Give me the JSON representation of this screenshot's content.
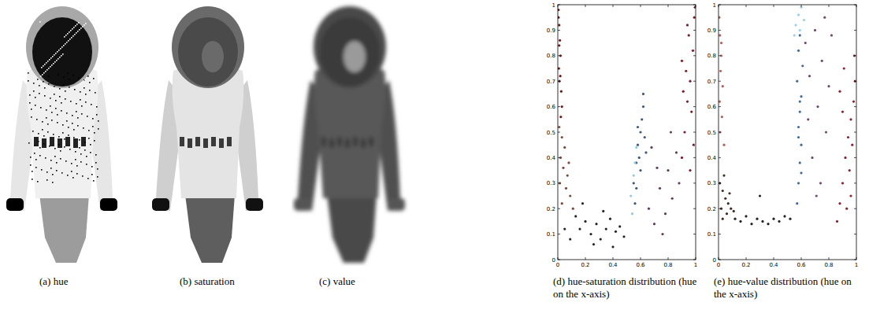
{
  "image_panels": [
    {
      "caption": "(a) hue"
    },
    {
      "caption": "(b) saturation"
    },
    {
      "caption": "(c) value"
    }
  ],
  "chart_data": [
    {
      "type": "scatter",
      "caption": "(d) hue-saturation distribution (hue on the x-axis)",
      "marker": "dot",
      "xlim": [
        0,
        1
      ],
      "ylim": [
        0,
        1
      ],
      "xticks": [
        0,
        0.2,
        0.4,
        0.6,
        0.8,
        1
      ],
      "yticks": [
        0,
        0.1,
        0.2,
        0.3,
        0.4,
        0.5,
        0.6,
        0.7,
        0.8,
        0.9,
        1
      ],
      "series": [
        {
          "color": "#6e1a1c",
          "x": [
            0.005,
            0.01,
            0.015,
            0.02,
            0.008,
            0.012,
            0.025,
            0.03,
            0.005,
            0.018,
            0.01,
            0.022
          ],
          "values": [
            0.98,
            0.92,
            0.86,
            0.8,
            0.75,
            0.7,
            0.66,
            0.6,
            0.95,
            0.72,
            0.84,
            0.56
          ]
        },
        {
          "color": "#7a4a3e",
          "x": [
            0.01,
            0.03,
            0.05,
            0.02,
            0.04,
            0.07,
            0.015,
            0.06,
            0.09,
            0.03,
            0.11,
            0.08
          ],
          "values": [
            0.52,
            0.48,
            0.44,
            0.4,
            0.36,
            0.33,
            0.3,
            0.28,
            0.25,
            0.22,
            0.2,
            0.38
          ]
        },
        {
          "color": "#2a2424",
          "x": [
            0.13,
            0.16,
            0.2,
            0.24,
            0.28,
            0.31,
            0.35,
            0.38,
            0.42,
            0.45,
            0.48,
            0.18,
            0.26,
            0.33,
            0.4,
            0.05,
            0.09
          ],
          "values": [
            0.17,
            0.12,
            0.15,
            0.1,
            0.14,
            0.08,
            0.12,
            0.16,
            0.11,
            0.13,
            0.09,
            0.22,
            0.06,
            0.19,
            0.05,
            0.12,
            0.08
          ]
        },
        {
          "color": "#3d5878",
          "x": [
            0.55,
            0.57,
            0.58,
            0.6,
            0.61,
            0.62,
            0.59,
            0.63,
            0.6,
            0.57,
            0.64,
            0.56,
            0.62,
            0.58
          ],
          "values": [
            0.3,
            0.38,
            0.45,
            0.5,
            0.55,
            0.6,
            0.4,
            0.48,
            0.35,
            0.28,
            0.42,
            0.22,
            0.65,
            0.52
          ]
        },
        {
          "color": "#8fc8e0",
          "x": [
            0.53,
            0.55,
            0.56,
            0.54,
            0.57
          ],
          "values": [
            0.25,
            0.33,
            0.38,
            0.18,
            0.44
          ]
        },
        {
          "color": "#5e3e5a",
          "x": [
            0.66,
            0.7,
            0.74,
            0.78,
            0.8,
            0.83,
            0.86,
            0.72,
            0.76,
            0.68,
            0.82,
            0.88
          ],
          "values": [
            0.2,
            0.14,
            0.28,
            0.18,
            0.35,
            0.24,
            0.42,
            0.36,
            0.1,
            0.44,
            0.5,
            0.3
          ]
        },
        {
          "color": "#7c1c2a",
          "x": [
            0.9,
            0.92,
            0.94,
            0.96,
            0.98,
            0.99,
            0.95,
            0.93,
            0.97,
            0.91,
            0.995,
            0.985,
            0.96,
            0.94,
            0.9
          ],
          "values": [
            0.4,
            0.5,
            0.62,
            0.7,
            0.82,
            0.95,
            0.88,
            0.74,
            0.58,
            0.66,
            0.99,
            0.45,
            0.35,
            0.92,
            0.78
          ]
        }
      ]
    },
    {
      "type": "scatter",
      "caption": "(e) hue-value distribution (hue on the x-axis)",
      "marker": "dot",
      "xlim": [
        0,
        1
      ],
      "ylim": [
        0,
        1
      ],
      "xticks": [
        0,
        0.2,
        0.4,
        0.6,
        0.8,
        1
      ],
      "yticks": [
        0,
        0.1,
        0.2,
        0.3,
        0.4,
        0.5,
        0.6,
        0.7,
        0.8,
        0.9,
        1
      ],
      "series": [
        {
          "color": "#b25c5c",
          "x": [
            0.005,
            0.01,
            0.02,
            0.015,
            0.03,
            0.008,
            0.025,
            0.012,
            0.04,
            0.02
          ],
          "values": [
            0.95,
            0.88,
            0.8,
            0.74,
            0.68,
            0.62,
            0.56,
            0.5,
            0.45,
            0.85
          ]
        },
        {
          "color": "#3e2c22",
          "x": [
            0.01,
            0.03,
            0.05,
            0.07,
            0.02,
            0.04,
            0.06,
            0.09,
            0.08,
            0.03,
            0.11
          ],
          "values": [
            0.3,
            0.27,
            0.24,
            0.22,
            0.2,
            0.33,
            0.18,
            0.2,
            0.26,
            0.16,
            0.19
          ]
        },
        {
          "color": "#222222",
          "x": [
            0.12,
            0.16,
            0.2,
            0.24,
            0.28,
            0.32,
            0.36,
            0.4,
            0.44,
            0.48,
            0.52,
            0.3
          ],
          "values": [
            0.16,
            0.15,
            0.17,
            0.14,
            0.16,
            0.15,
            0.14,
            0.16,
            0.15,
            0.17,
            0.16,
            0.25
          ]
        },
        {
          "color": "#456a92",
          "x": [
            0.57,
            0.58,
            0.59,
            0.6,
            0.58,
            0.59,
            0.6,
            0.57,
            0.61,
            0.58,
            0.59,
            0.6,
            0.58,
            0.59
          ],
          "values": [
            0.22,
            0.3,
            0.38,
            0.45,
            0.52,
            0.58,
            0.64,
            0.7,
            0.76,
            0.82,
            0.88,
            0.34,
            0.48,
            0.62
          ]
        },
        {
          "color": "#9fd0ea",
          "x": [
            0.56,
            0.58,
            0.6,
            0.62,
            0.55,
            0.59
          ],
          "values": [
            0.92,
            0.96,
            0.99,
            0.94,
            0.88,
            0.9
          ]
        },
        {
          "color": "#6c4c6c",
          "x": [
            0.63,
            0.66,
            0.7,
            0.72,
            0.75,
            0.78,
            0.8,
            0.68,
            0.74,
            0.82,
            0.65,
            0.77,
            0.71
          ],
          "values": [
            0.85,
            0.72,
            0.9,
            0.6,
            0.78,
            0.5,
            0.68,
            0.4,
            0.3,
            0.88,
            0.55,
            0.95,
            0.25
          ]
        },
        {
          "color": "#8a2232",
          "x": [
            0.86,
            0.88,
            0.9,
            0.92,
            0.94,
            0.96,
            0.98,
            0.99,
            0.93,
            0.95,
            0.97,
            0.9,
            0.88,
            0.985,
            0.91,
            0.96
          ],
          "values": [
            0.15,
            0.22,
            0.3,
            0.4,
            0.48,
            0.55,
            0.62,
            0.7,
            0.2,
            0.35,
            0.45,
            0.58,
            0.66,
            0.8,
            0.75,
            0.25
          ]
        }
      ]
    }
  ]
}
